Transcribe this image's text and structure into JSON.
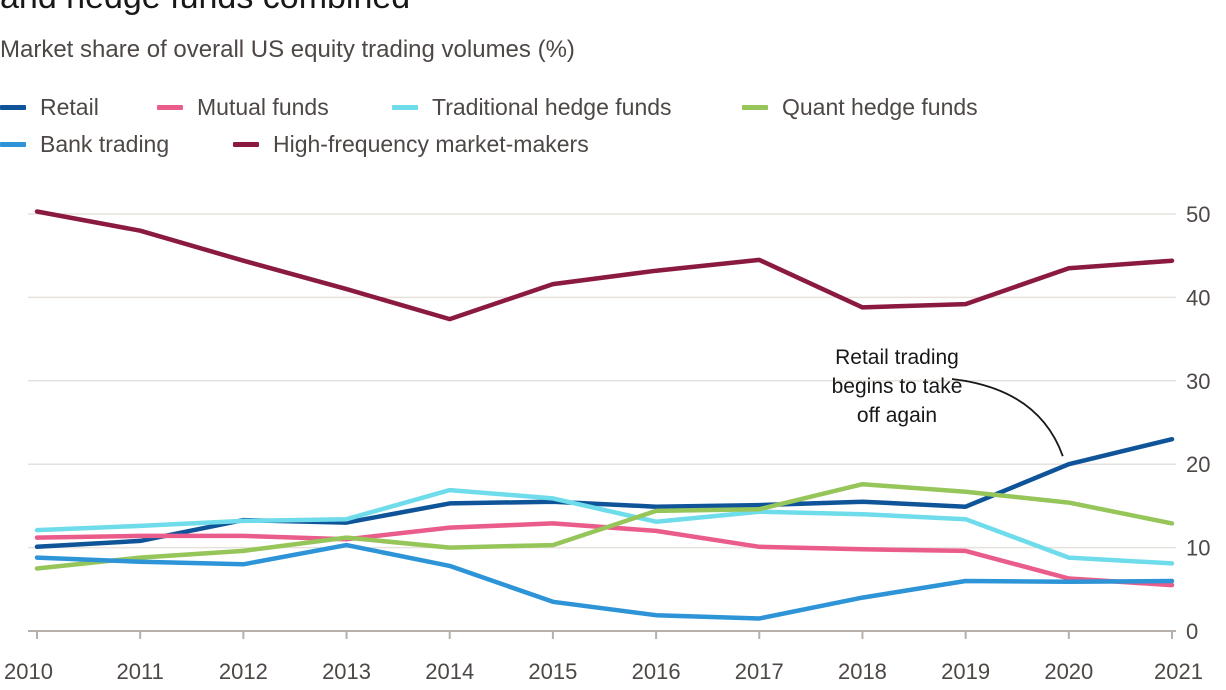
{
  "chart_data": {
    "type": "line",
    "title": "and hedge funds combined",
    "subtitle": "Market share of overall US equity trading volumes (%)",
    "x": [
      "2010",
      "2011",
      "2012",
      "2013",
      "2014",
      "2015",
      "2016",
      "2017",
      "2018",
      "2019",
      "2020",
      "2021"
    ],
    "yticks": [
      "0",
      "10",
      "20",
      "30",
      "40",
      "50"
    ],
    "ylim": [
      0,
      50
    ],
    "grid": true,
    "legend_position": "top-left",
    "y_axis_side": "right",
    "series": [
      {
        "name": "Retail",
        "color": "#0f5499",
        "values": [
          10.1,
          10.8,
          13.3,
          13.0,
          15.3,
          15.5,
          14.9,
          15.1,
          15.5,
          14.9,
          20.0,
          23.0
        ]
      },
      {
        "name": "Mutual funds",
        "color": "#ea5c8a",
        "values": [
          11.2,
          11.4,
          11.4,
          11.0,
          12.4,
          12.9,
          12.0,
          10.1,
          9.8,
          9.6,
          6.3,
          5.5
        ]
      },
      {
        "name": "Traditional hedge funds",
        "color": "#6edcea",
        "values": [
          12.1,
          12.6,
          13.2,
          13.4,
          16.9,
          15.9,
          13.1,
          14.3,
          14.0,
          13.4,
          8.8,
          8.1
        ]
      },
      {
        "name": "Quant hedge funds",
        "color": "#96c55a",
        "values": [
          7.5,
          8.8,
          9.6,
          11.2,
          10.0,
          10.3,
          14.4,
          14.6,
          17.6,
          16.7,
          15.4,
          12.9
        ]
      },
      {
        "name": "Bank trading",
        "color": "#2d94d7",
        "values": [
          8.8,
          8.3,
          8.0,
          10.3,
          7.8,
          3.5,
          1.9,
          1.5,
          4.0,
          6.0,
          5.9,
          6.0
        ]
      },
      {
        "name": "High-frequency market-makers",
        "color": "#8b1a40",
        "values": [
          50.3,
          48.0,
          44.4,
          41.0,
          37.4,
          41.6,
          43.2,
          44.5,
          38.8,
          39.2,
          43.5,
          44.4
        ]
      }
    ],
    "annotations": [
      {
        "lines": [
          "Retail trading",
          "begins to take",
          "off again"
        ],
        "x": "2020",
        "y": 20.0
      }
    ]
  },
  "colors": {
    "grid": "#e6e1dc",
    "axis": "#b7b0aa",
    "text": "#4d4845"
  }
}
